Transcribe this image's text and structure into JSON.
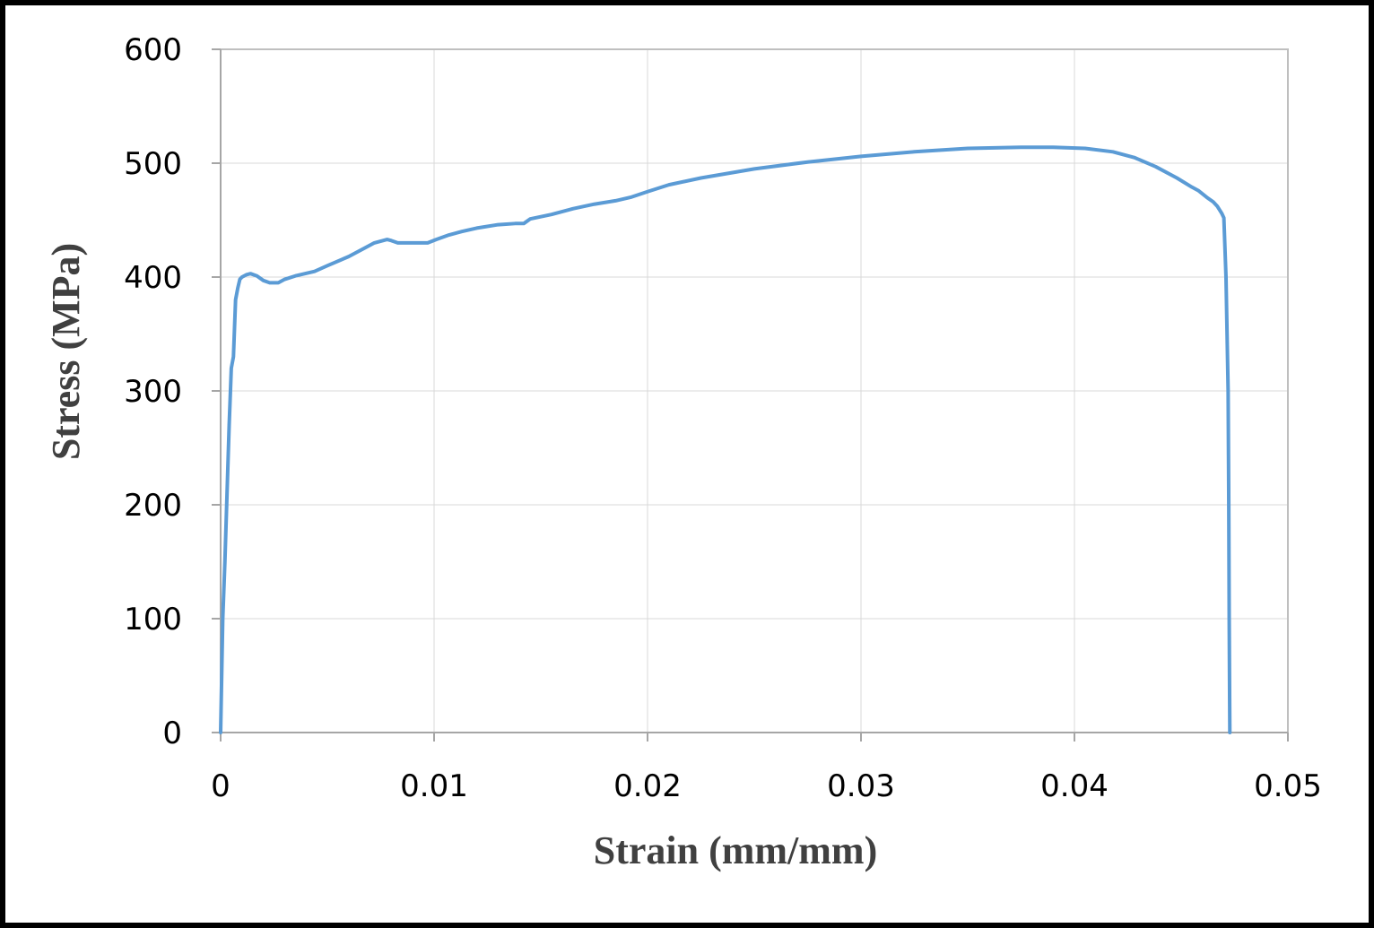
{
  "chart_data": {
    "type": "line",
    "title": "",
    "xlabel": "Strain (mm/mm)",
    "ylabel": "Stress (MPa)",
    "xlim": [
      0,
      0.05
    ],
    "ylim": [
      0,
      600
    ],
    "x_ticks": [
      0,
      0.01,
      0.02,
      0.03,
      0.04,
      0.05
    ],
    "x_tick_labels": [
      "0",
      "0.01",
      "0.02",
      "0.03",
      "0.04",
      "0.05"
    ],
    "y_ticks": [
      0,
      100,
      200,
      300,
      400,
      500,
      600
    ],
    "y_tick_labels": [
      "0",
      "100",
      "200",
      "300",
      "400",
      "500",
      "600"
    ],
    "grid": true,
    "legend": "none",
    "line_color": "#5b9bd5",
    "series": [
      {
        "x": [
          0,
          0.0001,
          0.0002,
          0.0003,
          0.0004,
          0.0005,
          0.0006,
          0.0007,
          0.0008,
          0.0009,
          0.001,
          0.0011,
          0.0012,
          0.0014,
          0.0017,
          0.002,
          0.0023,
          0.0027,
          0.003,
          0.0035,
          0.0044,
          0.005,
          0.006,
          0.0067,
          0.0072,
          0.0078,
          0.008,
          0.0083,
          0.0088,
          0.0093,
          0.0097,
          0.0101,
          0.0107,
          0.0113,
          0.012,
          0.013,
          0.0138,
          0.0142,
          0.0145,
          0.0155,
          0.0165,
          0.0175,
          0.0185,
          0.0192,
          0.02,
          0.021,
          0.0225,
          0.025,
          0.0275,
          0.03,
          0.0325,
          0.035,
          0.0375,
          0.039,
          0.0405,
          0.0418,
          0.0428,
          0.0438,
          0.0448,
          0.0455,
          0.0458,
          0.0462,
          0.0465,
          0.0467,
          0.0469,
          0.047,
          0.0471,
          0.0472,
          0.04723,
          0.04725,
          0.04727,
          0.04728
        ],
        "y": [
          0,
          100,
          150,
          210,
          270,
          320,
          330,
          380,
          390,
          398,
          400,
          401,
          402,
          403,
          401,
          397,
          395,
          395,
          398,
          401,
          405,
          410,
          418,
          425,
          430,
          433,
          432,
          430,
          430,
          430,
          430,
          433,
          437,
          440,
          443,
          446,
          447,
          447,
          451,
          455,
          460,
          464,
          467,
          470,
          475,
          481,
          487,
          495,
          501,
          506,
          510,
          513,
          514,
          514,
          513,
          510,
          505,
          497,
          487,
          479,
          476,
          470,
          466,
          462,
          456,
          452,
          400,
          300,
          200,
          100,
          30,
          0
        ]
      }
    ]
  }
}
